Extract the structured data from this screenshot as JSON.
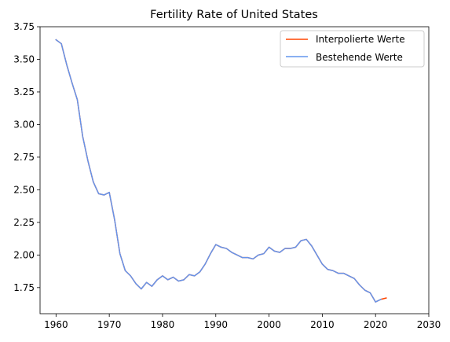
{
  "chart_data": {
    "type": "line",
    "title": "Fertility Rate of United States",
    "xlabel": "",
    "ylabel": "",
    "xlim": [
      1957,
      2030
    ],
    "ylim": [
      1.55,
      3.75
    ],
    "xticks": [
      1960,
      1970,
      1980,
      1990,
      2000,
      2010,
      2020,
      2030
    ],
    "yticks": [
      1.75,
      2.0,
      2.25,
      2.5,
      2.75,
      3.0,
      3.25,
      3.5,
      3.75
    ],
    "ytick_labels": [
      "1.75",
      "2.00",
      "2.25",
      "2.50",
      "2.75",
      "3.00",
      "3.25",
      "3.50",
      "3.75"
    ],
    "grid": false,
    "legend_position": "top-right",
    "series": [
      {
        "name": "Interpolierte Werte",
        "color": "#ff4500",
        "x": [
          1960,
          1961,
          1962,
          1963,
          1964,
          1965,
          1966,
          1967,
          1968,
          1969,
          1970,
          1971,
          1972,
          1973,
          1974,
          1975,
          1976,
          1977,
          1978,
          1979,
          1980,
          1981,
          1982,
          1983,
          1984,
          1985,
          1986,
          1987,
          1988,
          1989,
          1990,
          1991,
          1992,
          1993,
          1994,
          1995,
          1996,
          1997,
          1998,
          1999,
          2000,
          2001,
          2002,
          2003,
          2004,
          2005,
          2006,
          2007,
          2008,
          2009,
          2010,
          2011,
          2012,
          2013,
          2014,
          2015,
          2016,
          2017,
          2018,
          2019,
          2020,
          2021,
          2022
        ],
        "values": [
          3.65,
          3.62,
          3.46,
          3.32,
          3.19,
          2.91,
          2.72,
          2.56,
          2.47,
          2.46,
          2.48,
          2.27,
          2.01,
          1.88,
          1.84,
          1.78,
          1.74,
          1.79,
          1.76,
          1.81,
          1.84,
          1.81,
          1.83,
          1.8,
          1.81,
          1.85,
          1.84,
          1.87,
          1.93,
          2.01,
          2.08,
          2.06,
          2.05,
          2.02,
          2.0,
          1.98,
          1.98,
          1.97,
          2.0,
          2.01,
          2.06,
          2.03,
          2.02,
          2.05,
          2.05,
          2.06,
          2.11,
          2.12,
          2.07,
          2.0,
          1.93,
          1.89,
          1.88,
          1.86,
          1.86,
          1.84,
          1.82,
          1.77,
          1.73,
          1.71,
          1.64,
          1.66,
          1.67
        ]
      },
      {
        "name": "Bestehende Werte",
        "color": "#6495ed",
        "x": [
          1960,
          1961,
          1962,
          1963,
          1964,
          1965,
          1966,
          1967,
          1968,
          1969,
          1970,
          1971,
          1972,
          1973,
          1974,
          1975,
          1976,
          1977,
          1978,
          1979,
          1980,
          1981,
          1982,
          1983,
          1984,
          1985,
          1986,
          1987,
          1988,
          1989,
          1990,
          1991,
          1992,
          1993,
          1994,
          1995,
          1996,
          1997,
          1998,
          1999,
          2000,
          2001,
          2002,
          2003,
          2004,
          2005,
          2006,
          2007,
          2008,
          2009,
          2010,
          2011,
          2012,
          2013,
          2014,
          2015,
          2016,
          2017,
          2018,
          2019,
          2020,
          2021
        ],
        "values": [
          3.65,
          3.62,
          3.46,
          3.32,
          3.19,
          2.91,
          2.72,
          2.56,
          2.47,
          2.46,
          2.48,
          2.27,
          2.01,
          1.88,
          1.84,
          1.78,
          1.74,
          1.79,
          1.76,
          1.81,
          1.84,
          1.81,
          1.83,
          1.8,
          1.81,
          1.85,
          1.84,
          1.87,
          1.93,
          2.01,
          2.08,
          2.06,
          2.05,
          2.02,
          2.0,
          1.98,
          1.98,
          1.97,
          2.0,
          2.01,
          2.06,
          2.03,
          2.02,
          2.05,
          2.05,
          2.06,
          2.11,
          2.12,
          2.07,
          2.0,
          1.93,
          1.89,
          1.88,
          1.86,
          1.86,
          1.84,
          1.82,
          1.77,
          1.73,
          1.71,
          1.64,
          1.66
        ]
      }
    ]
  }
}
